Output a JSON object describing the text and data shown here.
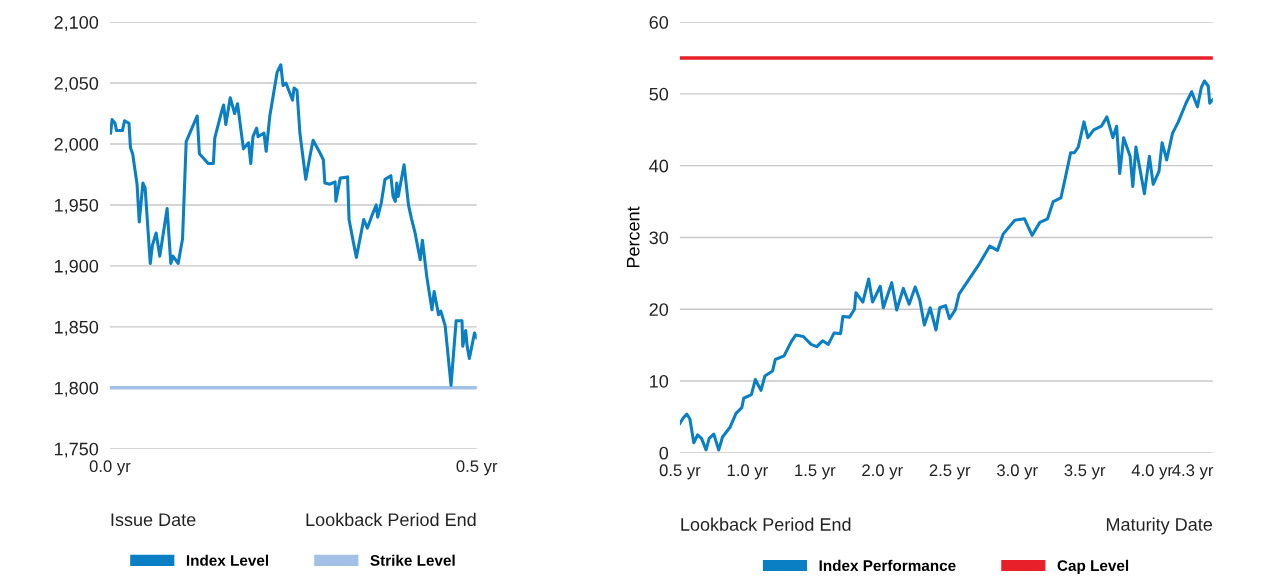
{
  "chart_data": [
    {
      "type": "line",
      "x": [
        0.001,
        0.003,
        0.007,
        0.009,
        0.017,
        0.02,
        0.026,
        0.028,
        0.031,
        0.037,
        0.04,
        0.045,
        0.048,
        0.052,
        0.055,
        0.058,
        0.063,
        0.068,
        0.078,
        0.083,
        0.086,
        0.093,
        0.099,
        0.104,
        0.119,
        0.122,
        0.134,
        0.141,
        0.143,
        0.152,
        0.155,
        0.158,
        0.164,
        0.17,
        0.174,
        0.182,
        0.189,
        0.192,
        0.195,
        0.2,
        0.202,
        0.21,
        0.213,
        0.218,
        0.228,
        0.233,
        0.236,
        0.24,
        0.249,
        0.251,
        0.255,
        0.259,
        0.267,
        0.273,
        0.277,
        0.287,
        0.291,
        0.293,
        0.3,
        0.307,
        0.308,
        0.314,
        0.324,
        0.326,
        0.332,
        0.336,
        0.346,
        0.351,
        0.357,
        0.363,
        0.365,
        0.37,
        0.375,
        0.383,
        0.386,
        0.389,
        0.391,
        0.393,
        0.401,
        0.407,
        0.411,
        0.416,
        0.423,
        0.426,
        0.432,
        0.439,
        0.442,
        0.448,
        0.451,
        0.457,
        0.465,
        0.472,
        0.48,
        0.481,
        0.485,
        0.487,
        0.49,
        0.497,
        0.5
      ],
      "series": [
        {
          "name": "Index Level",
          "color": "#0a7fc4",
          "values": [
            2009,
            2020,
            2017,
            2011,
            2011,
            2019,
            2017,
            1997,
            1992,
            1967,
            1936,
            1968,
            1964,
            1929,
            1902,
            1917,
            1927,
            1908,
            1947,
            1902,
            1908,
            1902,
            1922,
            2002,
            2023,
            1992,
            1984,
            1984,
            2005,
            2026,
            2032,
            2016,
            2038,
            2025,
            2033,
            1996,
            2001,
            1984,
            2006,
            2013,
            2006,
            2009,
            1994,
            2023,
            2059,
            2065,
            2048,
            2050,
            2036,
            2046,
            2044,
            2009,
            1971,
            1991,
            2003,
            1992,
            1987,
            1968,
            1967,
            1969,
            1953,
            1972,
            1973,
            1938,
            1919,
            1907,
            1938,
            1931,
            1941,
            1950,
            1940,
            1952,
            1971,
            1974,
            1957,
            1953,
            1968,
            1957,
            1983,
            1950,
            1939,
            1927,
            1905,
            1921,
            1891,
            1864,
            1879,
            1860,
            1863,
            1851,
            1802,
            1855,
            1855,
            1834,
            1847,
            1834,
            1824,
            1845,
            1841
          ]
        }
      ],
      "ref_lines": [
        {
          "axis": "y",
          "value": 1800,
          "label": "Strike Level",
          "color": "#a3c0e6"
        }
      ],
      "xlim": [
        0,
        0.5
      ],
      "xticks": [
        {
          "value": 0,
          "label": "0.0 yr"
        },
        {
          "value": 0.5,
          "label": "0.5 yr"
        }
      ],
      "ylim": [
        1750,
        2100
      ],
      "yticks": [
        {
          "value": 1750,
          "label": "1,750"
        },
        {
          "value": 1800,
          "label": "1,800"
        },
        {
          "value": 1850,
          "label": "1,850"
        },
        {
          "value": 1900,
          "label": "1,900"
        },
        {
          "value": 1950,
          "label": "1,950"
        },
        {
          "value": 2000,
          "label": "2,000"
        },
        {
          "value": 2050,
          "label": "2,050"
        },
        {
          "value": 2100,
          "label": "2,100"
        }
      ],
      "grid": "y",
      "legend": "bottom",
      "annotations": [
        "Issue Date",
        "Lookback Period End"
      ]
    },
    {
      "type": "line",
      "ylabel": "Percent",
      "x": [
        0.5,
        0.523,
        0.551,
        0.574,
        0.603,
        0.631,
        0.66,
        0.694,
        0.717,
        0.751,
        0.788,
        0.816,
        0.873,
        0.916,
        0.959,
        0.973,
        1.03,
        1.059,
        1.101,
        1.13,
        1.187,
        1.207,
        1.272,
        1.329,
        1.358,
        1.415,
        1.472,
        1.515,
        1.557,
        1.6,
        1.643,
        1.691,
        1.708,
        1.757,
        1.794,
        1.805,
        1.856,
        1.899,
        1.928,
        1.985,
        2.008,
        2.07,
        2.107,
        2.156,
        2.199,
        2.244,
        2.278,
        2.312,
        2.355,
        2.398,
        2.426,
        2.469,
        2.498,
        2.541,
        2.569,
        2.626,
        2.712,
        2.797,
        2.854,
        2.897,
        2.982,
        3.054,
        3.111,
        3.168,
        3.225,
        3.267,
        3.324,
        3.367,
        3.396,
        3.424,
        3.453,
        3.495,
        3.524,
        3.567,
        3.624,
        3.665,
        3.709,
        3.737,
        3.76,
        3.789,
        3.837,
        3.857,
        3.88,
        3.908,
        3.943,
        3.98,
        4.008,
        4.051,
        4.074,
        4.108,
        4.151,
        4.194,
        4.251,
        4.293,
        4.336,
        4.365,
        4.388,
        4.416,
        4.427,
        4.45
      ],
      "series": [
        {
          "name": "Index Performance",
          "color": "#0a7fc4",
          "values": [
            4.1,
            4.8,
            5.4,
            4.7,
            1.4,
            2.5,
            2.0,
            0.4,
            2.0,
            2.6,
            0.4,
            2.2,
            3.6,
            5.5,
            6.3,
            7.6,
            8.1,
            10.2,
            8.7,
            10.7,
            11.4,
            13.0,
            13.5,
            15.6,
            16.4,
            16.2,
            15.1,
            14.8,
            15.6,
            15.1,
            16.7,
            16.6,
            19.0,
            18.9,
            20.0,
            22.3,
            21.0,
            24.2,
            21.0,
            23.2,
            20.2,
            23.7,
            19.9,
            22.9,
            20.7,
            23.1,
            21.3,
            17.8,
            20.2,
            17.1,
            20.2,
            20.5,
            18.7,
            19.9,
            22.1,
            23.7,
            26.1,
            28.8,
            28.2,
            30.5,
            32.4,
            32.6,
            30.3,
            32.1,
            32.6,
            35.0,
            35.5,
            39.2,
            41.8,
            41.8,
            42.6,
            46.1,
            43.9,
            45.0,
            45.5,
            46.8,
            43.9,
            45.5,
            38.9,
            43.9,
            41.3,
            37.1,
            42.6,
            39.7,
            36.1,
            41.3,
            37.4,
            39.2,
            43.2,
            40.8,
            44.5,
            46.1,
            48.7,
            50.3,
            48.2,
            50.9,
            51.8,
            51.1,
            48.7,
            49.2
          ]
        }
      ],
      "ref_lines": [
        {
          "axis": "y",
          "value": 55,
          "label": "Cap Level",
          "color": "#e8202a"
        }
      ],
      "xlim": [
        0.5,
        4.45
      ],
      "xticks": [
        {
          "value": 0.5,
          "label": "0.5 yr"
        },
        {
          "value": 1.0,
          "label": "1.0 yr"
        },
        {
          "value": 1.5,
          "label": "1.5 yr"
        },
        {
          "value": 2.0,
          "label": "2.0 yr"
        },
        {
          "value": 2.5,
          "label": "2.5 yr"
        },
        {
          "value": 3.0,
          "label": "3.0 yr"
        },
        {
          "value": 3.5,
          "label": "3.5 yr"
        },
        {
          "value": 4.0,
          "label": "4.0 yr"
        },
        {
          "value": 4.3,
          "label": "4.3 yr"
        }
      ],
      "ylim": [
        0,
        60
      ],
      "yticks": [
        0,
        10,
        20,
        30,
        40,
        50,
        60
      ],
      "grid": "y",
      "legend": "bottom",
      "annotations": [
        "Lookback Period End",
        "Maturity Date"
      ]
    }
  ]
}
